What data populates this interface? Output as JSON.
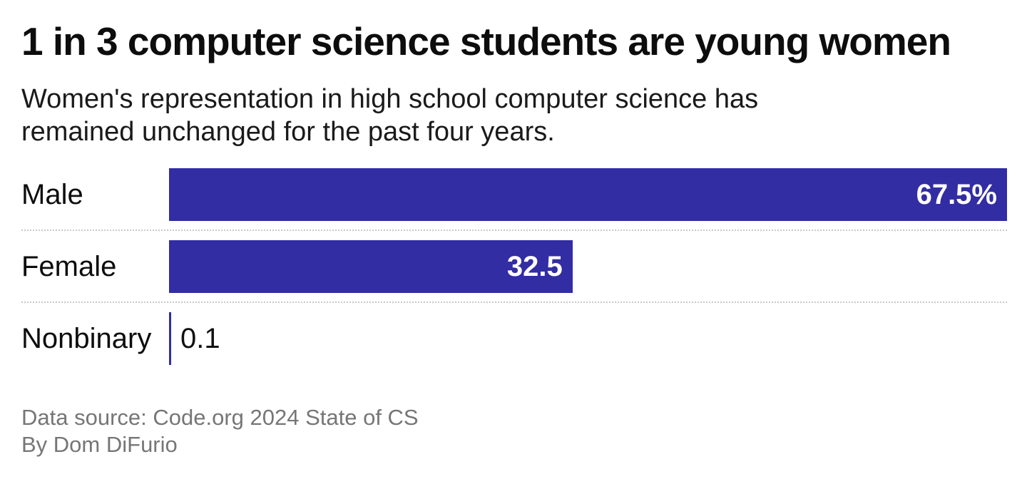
{
  "header": {
    "title": "1 in 3 computer science students are young women",
    "subtitle_line1": "Women's representation in high school computer science has",
    "subtitle_line2": "remained unchanged for the past four years."
  },
  "chart_data": {
    "type": "bar",
    "orientation": "horizontal",
    "title": "1 in 3 computer science students are young women",
    "subtitle": "Women's representation in high school computer science has remained unchanged for the past four years.",
    "categories": [
      "Male",
      "Female",
      "Nonbinary"
    ],
    "values": [
      67.5,
      32.5,
      0.1
    ],
    "unit": "percent",
    "axis_max": 67.5,
    "grid": "off",
    "legend": "none",
    "bar_color": "#322DA3",
    "rows": [
      {
        "label": "Male",
        "value": 67.5,
        "value_label": "67.5%",
        "value_label_position": "inside"
      },
      {
        "label": "Female",
        "value": 32.5,
        "value_label": "32.5",
        "value_label_position": "inside"
      },
      {
        "label": "Nonbinary",
        "value": 0.1,
        "value_label": "0.1",
        "value_label_position": "outside"
      }
    ]
  },
  "footer": {
    "source": "Data source: Code.org 2024 State of CS",
    "byline": "By Dom DiFurio"
  }
}
